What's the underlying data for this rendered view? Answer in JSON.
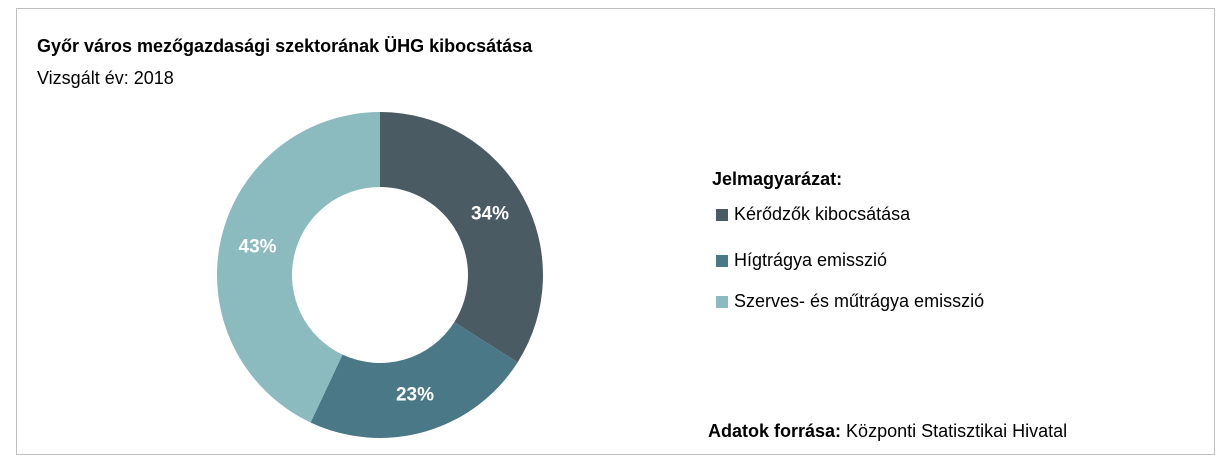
{
  "chart_data": {
    "type": "donut",
    "title": "Győr város mezőgazdasági szektorának ÜHG kibocsátása",
    "subtitle": "Vizsgált év: 2018",
    "legend_title": "Jelmagyarázat:",
    "categories": [
      "Kérődzők kibocsátása",
      "Hígtrágya emisszió",
      "Szerves- és műtrágya emisszió"
    ],
    "values": [
      34,
      23,
      43
    ],
    "value_labels": [
      "34%",
      "23%",
      "43%"
    ],
    "colors": [
      "#4a5b63",
      "#4a7886",
      "#8bbbbe"
    ],
    "legend": "right",
    "source_label": "Adatok forrása:",
    "source": "Központi Statisztikai Hivatal"
  }
}
